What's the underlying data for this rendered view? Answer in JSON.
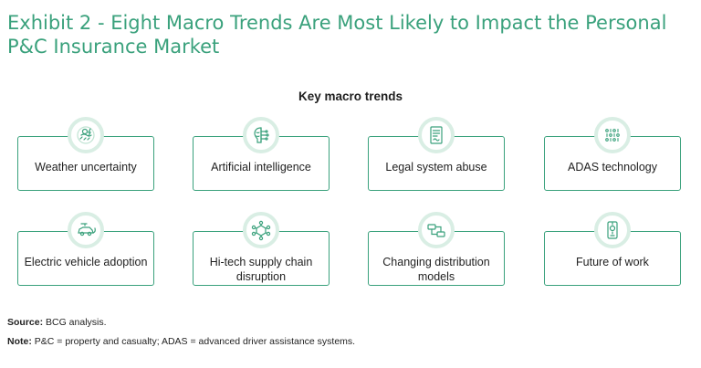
{
  "header": {
    "title": "Exhibit 2 - Eight Macro Trends Are Most Likely to Impact the Personal P&C Insurance Market"
  },
  "diagram": {
    "subtitle": "Key macro trends",
    "accent_color": "#3aa17c",
    "trends": [
      {
        "label": "Weather uncertainty",
        "icon": "weather-icon"
      },
      {
        "label": "Artificial intelligence",
        "icon": "brain-chip-icon"
      },
      {
        "label": "Legal system abuse",
        "icon": "legal-document-icon"
      },
      {
        "label": "ADAS technology",
        "icon": "binary-code-icon"
      },
      {
        "label": "Electric vehicle adoption",
        "icon": "electric-car-icon"
      },
      {
        "label": "Hi-tech supply chain disruption",
        "icon": "network-nodes-icon"
      },
      {
        "label": "Changing distribution models",
        "icon": "distribution-flow-icon"
      },
      {
        "label": "Future of work",
        "icon": "mobile-device-icon"
      }
    ]
  },
  "footer": {
    "source_label": "Source:",
    "source_text": "BCG analysis.",
    "note_label": "Note:",
    "note_text": "P&C = property and casualty; ADAS = advanced driver assistance systems."
  }
}
